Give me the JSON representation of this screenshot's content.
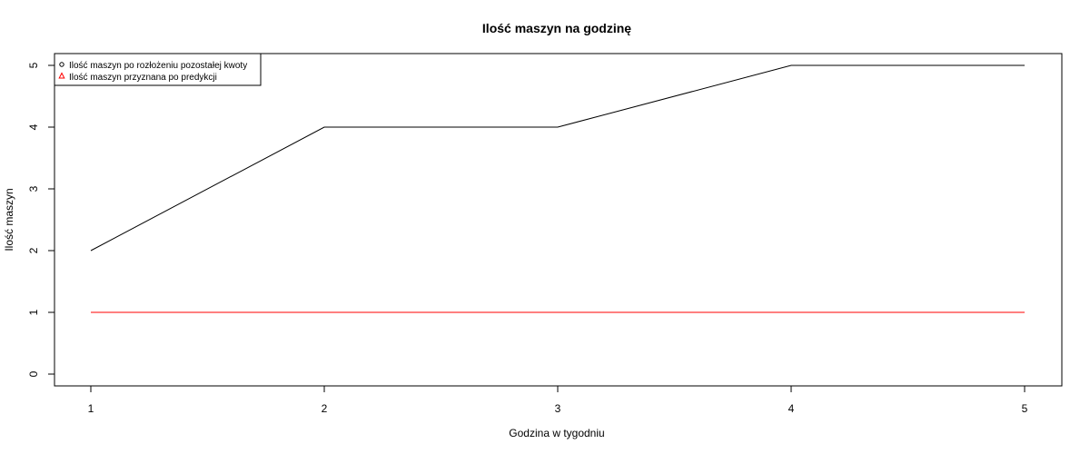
{
  "chart_data": {
    "type": "line",
    "title": "Ilość maszyn na godzinę",
    "xlabel": "Godzina w tygodniu",
    "ylabel": "Ilość maszyn",
    "x": [
      1,
      2,
      3,
      4,
      5
    ],
    "xlim": [
      1,
      5
    ],
    "ylim": [
      0,
      5
    ],
    "x_ticks": [
      1,
      2,
      3,
      4,
      5
    ],
    "y_ticks": [
      0,
      1,
      2,
      3,
      4,
      5
    ],
    "grid": false,
    "legend_position": "top-left",
    "series": [
      {
        "name": "Ilość maszyn po rozłożeniu pozostałej kwoty",
        "values": [
          2,
          4,
          4,
          5,
          5
        ],
        "color": "#000000",
        "marker": "circle"
      },
      {
        "name": "Ilość maszyn przyznana po predykcji",
        "values": [
          1,
          1,
          1,
          1,
          1
        ],
        "color": "#ff0000",
        "marker": "triangle"
      }
    ]
  }
}
